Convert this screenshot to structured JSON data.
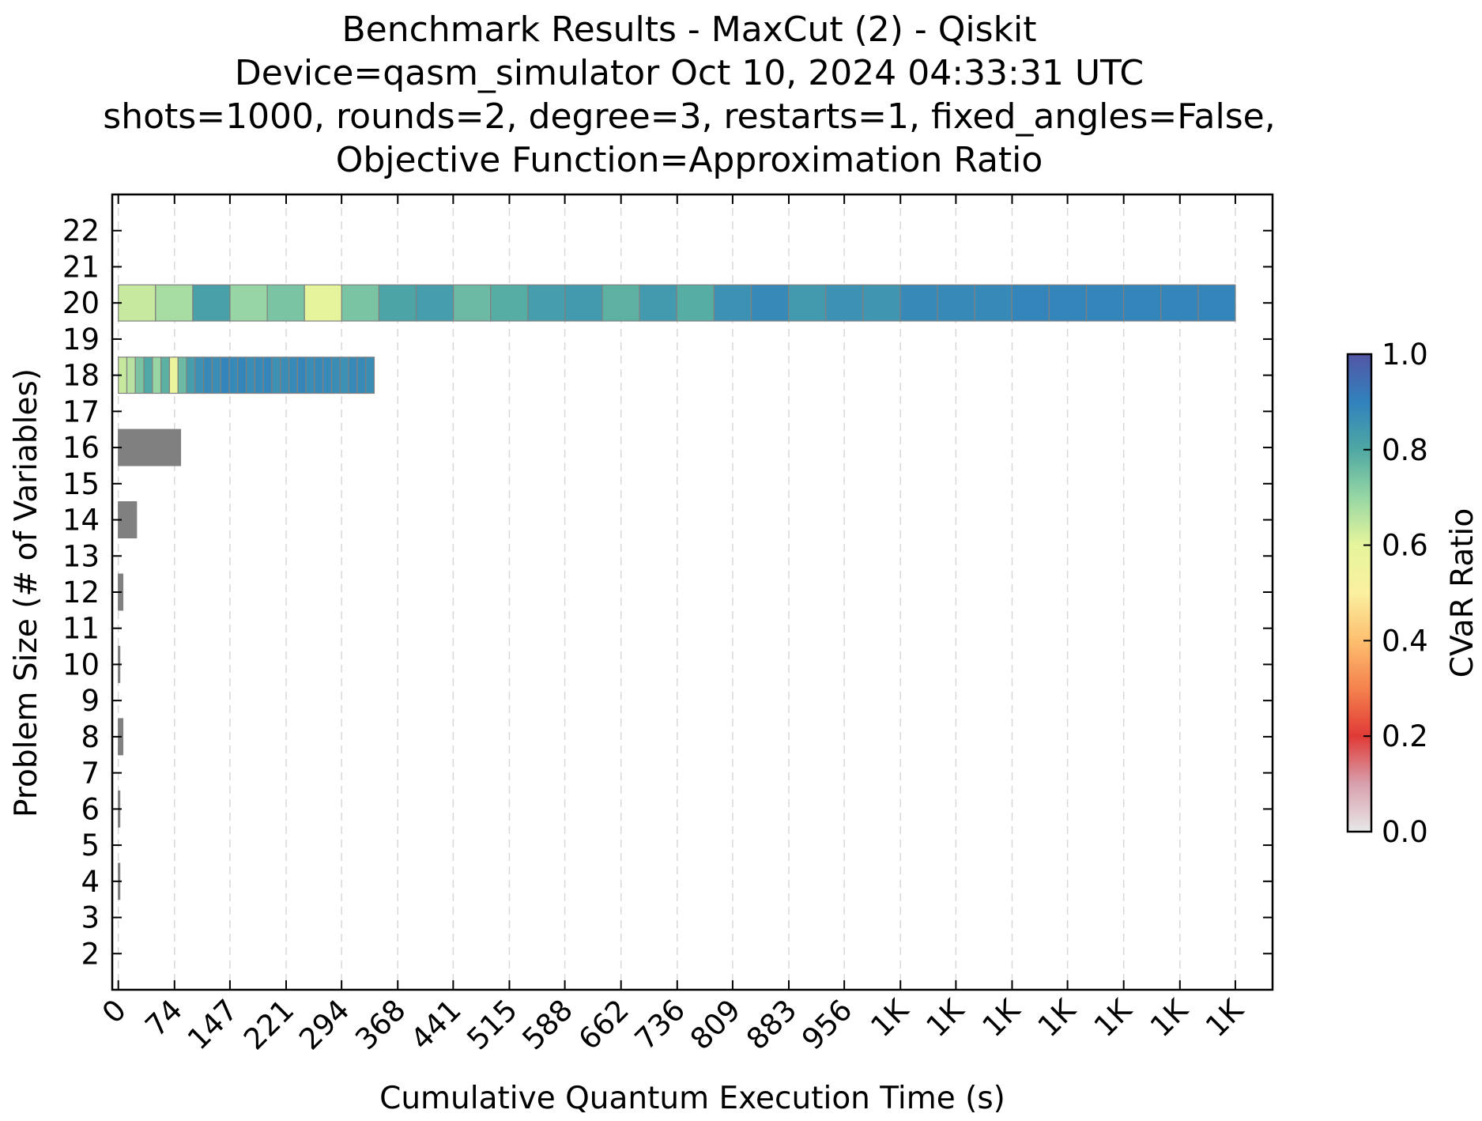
{
  "chart_data": {
    "type": "heatmap",
    "title_lines": [
      "Benchmark Results - MaxCut (2) - Qiskit",
      "Device=qasm_simulator  Oct 10, 2024 04:33:31 UTC",
      "shots=1000, rounds=2, degree=3, restarts=1, fixed_angles=False,",
      "Objective Function=Approximation Ratio"
    ],
    "xlabel": "Cumulative Quantum Execution Time (s)",
    "ylabel": "Problem Size (# of Variables)",
    "xlim": [
      -8,
      1520
    ],
    "ylim": [
      1,
      23
    ],
    "x_ticks": [
      0,
      74,
      147,
      221,
      294,
      368,
      441,
      515,
      588,
      662,
      736,
      809,
      883,
      956,
      1030,
      1103,
      1177,
      1250,
      1324,
      1398,
      1471
    ],
    "x_tick_labels": [
      "0",
      "74",
      "147",
      "221",
      "294",
      "368",
      "441",
      "515",
      "588",
      "662",
      "736",
      "809",
      "883",
      "956",
      "1K",
      "1K",
      "1K",
      "1K",
      "1K",
      "1K",
      "1K"
    ],
    "y_ticks": [
      2,
      3,
      4,
      5,
      6,
      7,
      8,
      9,
      10,
      11,
      12,
      13,
      14,
      15,
      16,
      17,
      18,
      19,
      20,
      21,
      22
    ],
    "colorbar": {
      "label": "CVaR Ratio",
      "min": 0.0,
      "max": 1.0,
      "tick_values": [
        0.0,
        0.2,
        0.4,
        0.6,
        0.8,
        1.0
      ],
      "tick_labels": [
        "0.0",
        "0.2",
        "0.4",
        "0.6",
        "0.8",
        "1.0"
      ],
      "colormap_stops": [
        [
          0.0,
          "#e8e8e8"
        ],
        [
          0.1,
          "#d8a0ae"
        ],
        [
          0.2,
          "#e03a36"
        ],
        [
          0.3,
          "#f5824e"
        ],
        [
          0.4,
          "#fdbf6f"
        ],
        [
          0.5,
          "#fbf0a0"
        ],
        [
          0.6,
          "#e6f59c"
        ],
        [
          0.7,
          "#97d6a4"
        ],
        [
          0.8,
          "#4fa8a3"
        ],
        [
          0.9,
          "#3182bd"
        ],
        [
          1.0,
          "#5355a5"
        ]
      ]
    },
    "rows": [
      {
        "y": 4,
        "x_end": 2,
        "count": 1,
        "values": [],
        "color": "#808080"
      },
      {
        "y": 6,
        "x_end": 2,
        "count": 1,
        "values": [],
        "color": "#808080"
      },
      {
        "y": 8,
        "x_end": 6,
        "count": 3,
        "values": [],
        "color": "#808080"
      },
      {
        "y": 10,
        "x_end": 2,
        "count": 1,
        "values": [],
        "color": "#808080"
      },
      {
        "y": 12,
        "x_end": 6,
        "count": 3,
        "values": [],
        "color": "#808080"
      },
      {
        "y": 14,
        "x_end": 24,
        "count": 6,
        "values": [],
        "color": "#808080"
      },
      {
        "y": 16,
        "x_end": 82,
        "count": 30,
        "values": [],
        "color": "#808080"
      },
      {
        "y": 18,
        "x_end": 337,
        "count": 30,
        "values": [
          0.64,
          0.66,
          0.74,
          0.8,
          0.7,
          0.78,
          0.57,
          0.76,
          0.83,
          0.86,
          0.88,
          0.87,
          0.89,
          0.88,
          0.89,
          0.87,
          0.88,
          0.89,
          0.86,
          0.87,
          0.88,
          0.89,
          0.87,
          0.88,
          0.88,
          0.87,
          0.86,
          0.88,
          0.88,
          0.87
        ]
      },
      {
        "y": 20,
        "x_end": 1471,
        "count": 30,
        "values": [
          0.64,
          0.68,
          0.82,
          0.7,
          0.74,
          0.6,
          0.74,
          0.81,
          0.83,
          0.76,
          0.79,
          0.83,
          0.84,
          0.78,
          0.84,
          0.79,
          0.86,
          0.88,
          0.84,
          0.86,
          0.85,
          0.88,
          0.88,
          0.88,
          0.89,
          0.89,
          0.89,
          0.89,
          0.89,
          0.89
        ]
      }
    ]
  }
}
